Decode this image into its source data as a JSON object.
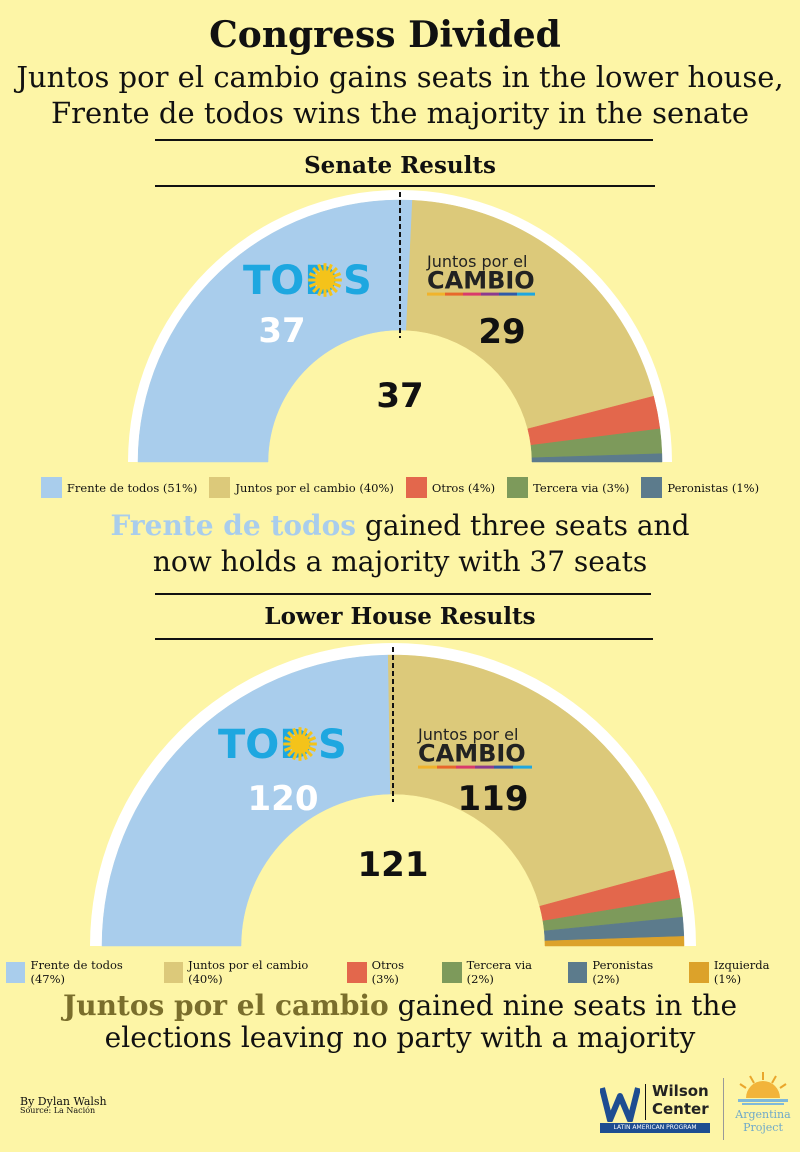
{
  "header": {
    "title": "Congress Divided",
    "subtitle_line1": "Juntos por el cambio gains seats in the lower house,",
    "subtitle_line2": "Frente de todos wins the majority in the senate"
  },
  "colors": {
    "background": "#fdf5a6",
    "frente": "#a9cdec",
    "juntos": "#dcc97a",
    "otros": "#e3674c",
    "tercera": "#7d9a5b",
    "peronistas": "#5c7b8c",
    "izquierda": "#dca22a"
  },
  "senate": {
    "section_title": "Senate Results",
    "todos_logo": "TOD",
    "todos_logo_end": "S",
    "juntos_logo_top": "Juntos por el",
    "juntos_logo_bottom": "CAMBIO",
    "frente_seats": "37",
    "juntos_seats": "29",
    "majority_line": "37",
    "caption_highlight": "Frente de todos",
    "caption_rest1": " gained three seats and",
    "caption_line2": "now holds a majority with 37 seats"
  },
  "lower": {
    "section_title": "Lower House Results",
    "todos_logo": "TOD",
    "todos_logo_end": "S",
    "juntos_logo_top": "Juntos por el",
    "juntos_logo_bottom": "CAMBIO",
    "frente_seats": "120",
    "juntos_seats": "119",
    "majority_line": "121",
    "caption_highlight": "Juntos por el cambio",
    "caption_rest1": " gained nine seats in the",
    "caption_line2": "elections leaving no party with a majority"
  },
  "chart_data": [
    {
      "type": "pie",
      "title": "Senate Results",
      "categories": [
        "Frente de todos",
        "Juntos por el cambio",
        "Otros",
        "Tercera via",
        "Peronistas"
      ],
      "values": [
        51,
        40,
        4,
        3,
        1
      ],
      "legend": [
        "Frente de todos (51%)",
        "Juntos por el cambio (40%)",
        "Otros (4%)",
        "Tercera via (3%)",
        "Peronistas (1%)"
      ],
      "seats": {
        "Frente de todos": 37,
        "Juntos por el cambio": 29
      },
      "majority": 37
    },
    {
      "type": "pie",
      "title": "Lower House Results",
      "categories": [
        "Frente de todos",
        "Juntos por el cambio",
        "Otros",
        "Tercera via",
        "Peronistas",
        "Izquierda"
      ],
      "values": [
        47,
        40,
        3,
        2,
        2,
        1
      ],
      "legend": [
        "Frente de todos (47%)",
        "Juntos por el cambio (40%)",
        "Otros (3%)",
        "Tercera via (2%)",
        "Peronistas (2%)",
        "Izquierda (1%)"
      ],
      "seats": {
        "Frente de todos": 120,
        "Juntos por el cambio": 119
      },
      "majority": 121
    }
  ],
  "footer": {
    "author": "By Dylan Walsh",
    "source": "Source: La Nación",
    "wilson_top": "Wilson",
    "wilson_bottom": "Center",
    "wilson_program": "LATIN AMERICAN PROGRAM",
    "argentina_1": "Argentina",
    "argentina_2": "Project"
  }
}
